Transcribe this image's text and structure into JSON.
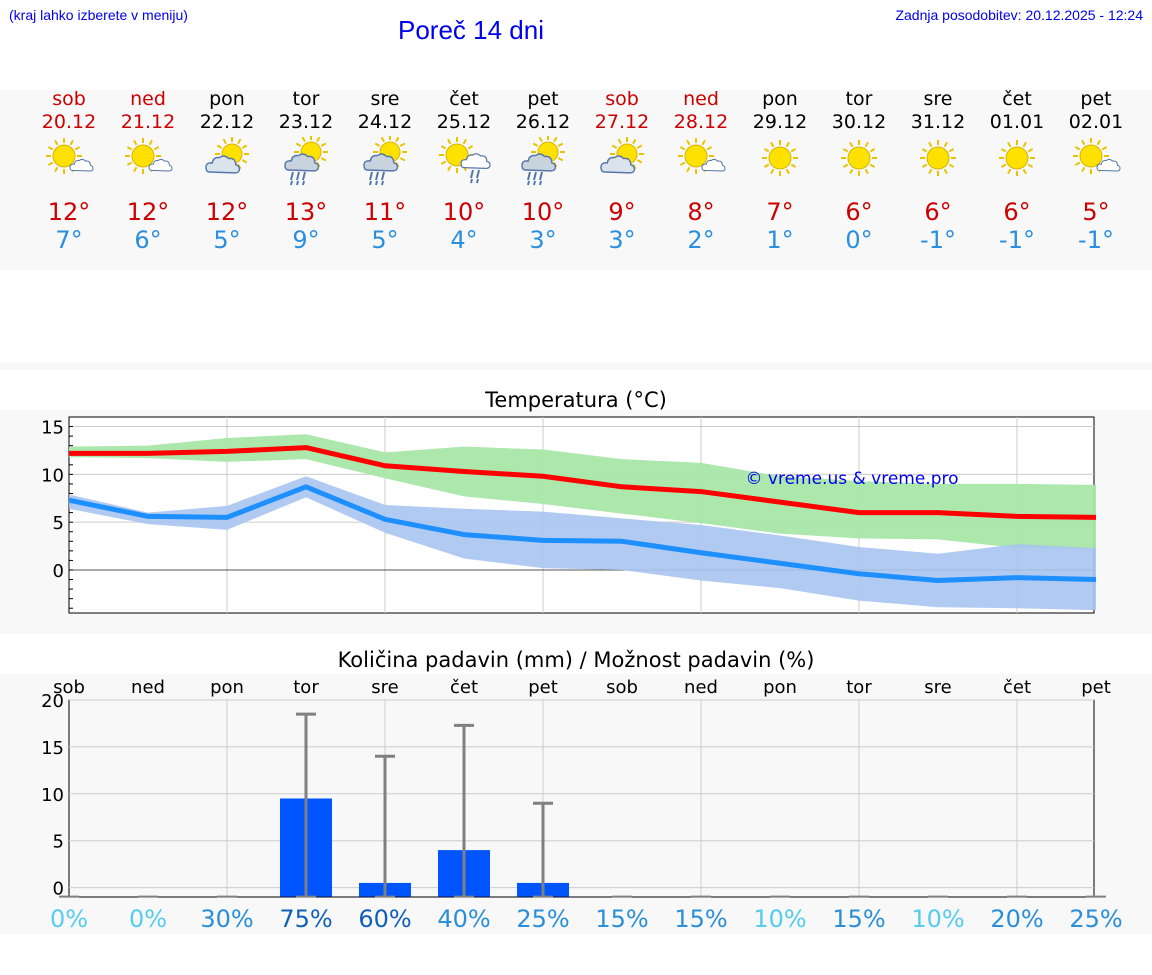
{
  "header": {
    "menu_hint": "(kraj lahko izberete v meniju)",
    "title": "Poreč 14 dni",
    "updated": "Zadnja posodobitev: 20.12.2025 - 12:24"
  },
  "days": [
    {
      "name": "sob",
      "date": "20.12",
      "weekend": true,
      "icon": "sun-cloud-icon",
      "tmax": "12°",
      "tmin": "7°"
    },
    {
      "name": "ned",
      "date": "21.12",
      "weekend": true,
      "icon": "sun-cloud-icon",
      "tmax": "12°",
      "tmin": "6°"
    },
    {
      "name": "pon",
      "date": "22.12",
      "weekend": false,
      "icon": "cloud-sun-icon",
      "tmax": "12°",
      "tmin": "5°"
    },
    {
      "name": "tor",
      "date": "23.12",
      "weekend": false,
      "icon": "cloud-sun-rain-icon",
      "tmax": "13°",
      "tmin": "9°"
    },
    {
      "name": "sre",
      "date": "24.12",
      "weekend": false,
      "icon": "cloud-sun-rain-icon",
      "tmax": "11°",
      "tmin": "5°"
    },
    {
      "name": "čet",
      "date": "25.12",
      "weekend": false,
      "icon": "sun-cloud-rain-icon",
      "tmax": "10°",
      "tmin": "4°"
    },
    {
      "name": "pet",
      "date": "26.12",
      "weekend": false,
      "icon": "cloud-sun-rain-icon",
      "tmax": "10°",
      "tmin": "3°"
    },
    {
      "name": "sob",
      "date": "27.12",
      "weekend": true,
      "icon": "cloud-sun-icon",
      "tmax": "9°",
      "tmin": "3°"
    },
    {
      "name": "ned",
      "date": "28.12",
      "weekend": true,
      "icon": "sun-cloud-icon",
      "tmax": "8°",
      "tmin": "2°"
    },
    {
      "name": "pon",
      "date": "29.12",
      "weekend": false,
      "icon": "sun-icon",
      "tmax": "7°",
      "tmin": "1°"
    },
    {
      "name": "tor",
      "date": "30.12",
      "weekend": false,
      "icon": "sun-icon",
      "tmax": "6°",
      "tmin": "0°"
    },
    {
      "name": "sre",
      "date": "31.12",
      "weekend": false,
      "icon": "sun-icon",
      "tmax": "6°",
      "tmin": "-1°"
    },
    {
      "name": "čet",
      "date": "01.01",
      "weekend": false,
      "icon": "sun-icon",
      "tmax": "6°",
      "tmin": "-1°"
    },
    {
      "name": "pet",
      "date": "02.01",
      "weekend": false,
      "icon": "sun-cloud-icon",
      "tmax": "5°",
      "tmin": "-1°"
    }
  ],
  "colors": {
    "max_line": "#ff0000",
    "min_line": "#1e8fff",
    "max_band": "#a8e6a8",
    "min_band": "#a8c4f0",
    "bar": "#0055ff",
    "whisker": "#808080",
    "weekend": "#cc0000"
  },
  "chart_data": [
    {
      "type": "line",
      "title": "Temperatura (°C)",
      "watermark": "© vreme.us & vreme.pro",
      "x": [
        0,
        1,
        2,
        3,
        4,
        5,
        6,
        7,
        8,
        9,
        10,
        11,
        12,
        13
      ],
      "ylim": [
        -4.5,
        16
      ],
      "yticks": [
        "15",
        "10",
        "5",
        "0"
      ],
      "ytick_values": [
        15,
        10,
        5,
        0
      ],
      "series": [
        {
          "name": "max",
          "values": [
            12.2,
            12.2,
            12.4,
            12.8,
            10.9,
            10.3,
            9.8,
            8.7,
            8.2,
            7.1,
            6.0,
            6.0,
            5.6,
            5.5
          ],
          "band_low": [
            11.8,
            11.7,
            11.3,
            11.6,
            9.6,
            7.7,
            6.9,
            5.9,
            4.9,
            3.8,
            3.3,
            3.2,
            2.3,
            2.2
          ],
          "band_high": [
            12.9,
            13.0,
            13.8,
            14.2,
            12.3,
            12.9,
            12.6,
            11.6,
            11.2,
            9.8,
            9.3,
            9.0,
            9.0,
            8.9
          ]
        },
        {
          "name": "min",
          "values": [
            7.3,
            5.6,
            5.5,
            8.7,
            5.3,
            3.7,
            3.1,
            3.0,
            1.8,
            0.7,
            -0.4,
            -1.1,
            -0.8,
            -1.0
          ],
          "band_low": [
            6.4,
            4.8,
            4.2,
            7.6,
            3.9,
            1.2,
            0.2,
            0.0,
            -1.1,
            -1.9,
            -3.2,
            -3.9,
            -4.0,
            -4.2
          ],
          "band_high": [
            7.9,
            6.0,
            6.7,
            9.8,
            6.8,
            6.4,
            6.1,
            5.4,
            4.7,
            3.6,
            2.4,
            1.7,
            2.7,
            2.3
          ]
        }
      ]
    },
    {
      "type": "bar",
      "title": "Količina padavin (mm) / Možnost padavin (%)",
      "categories": [
        "sob",
        "ned",
        "pon",
        "tor",
        "sre",
        "čet",
        "pet",
        "sob",
        "ned",
        "pon",
        "tor",
        "sre",
        "čet",
        "pet"
      ],
      "values": [
        0,
        0,
        0,
        9.5,
        0.5,
        4.0,
        0.5,
        0,
        0,
        0,
        0,
        0,
        0,
        0
      ],
      "error_high": [
        0,
        0,
        0,
        18.5,
        14.0,
        17.3,
        9.0,
        0,
        0,
        0,
        0,
        0,
        0,
        0
      ],
      "ylim": [
        -1,
        20
      ],
      "yticks": [
        "20",
        "15",
        "10",
        "5",
        "0"
      ],
      "ytick_values": [
        20,
        15,
        10,
        5,
        0
      ],
      "probabilities": [
        "0%",
        "0%",
        "30%",
        "75%",
        "60%",
        "40%",
        "25%",
        "15%",
        "15%",
        "10%",
        "15%",
        "10%",
        "20%",
        "25%"
      ],
      "prob_colors": [
        "#55ccee",
        "#55ccee",
        "#2a8fd8",
        "#1060b8",
        "#1060b8",
        "#2a8fd8",
        "#2a8fd8",
        "#2a8fd8",
        "#2a8fd8",
        "#55ccee",
        "#2a8fd8",
        "#55ccee",
        "#2a8fd8",
        "#2a8fd8"
      ]
    }
  ]
}
